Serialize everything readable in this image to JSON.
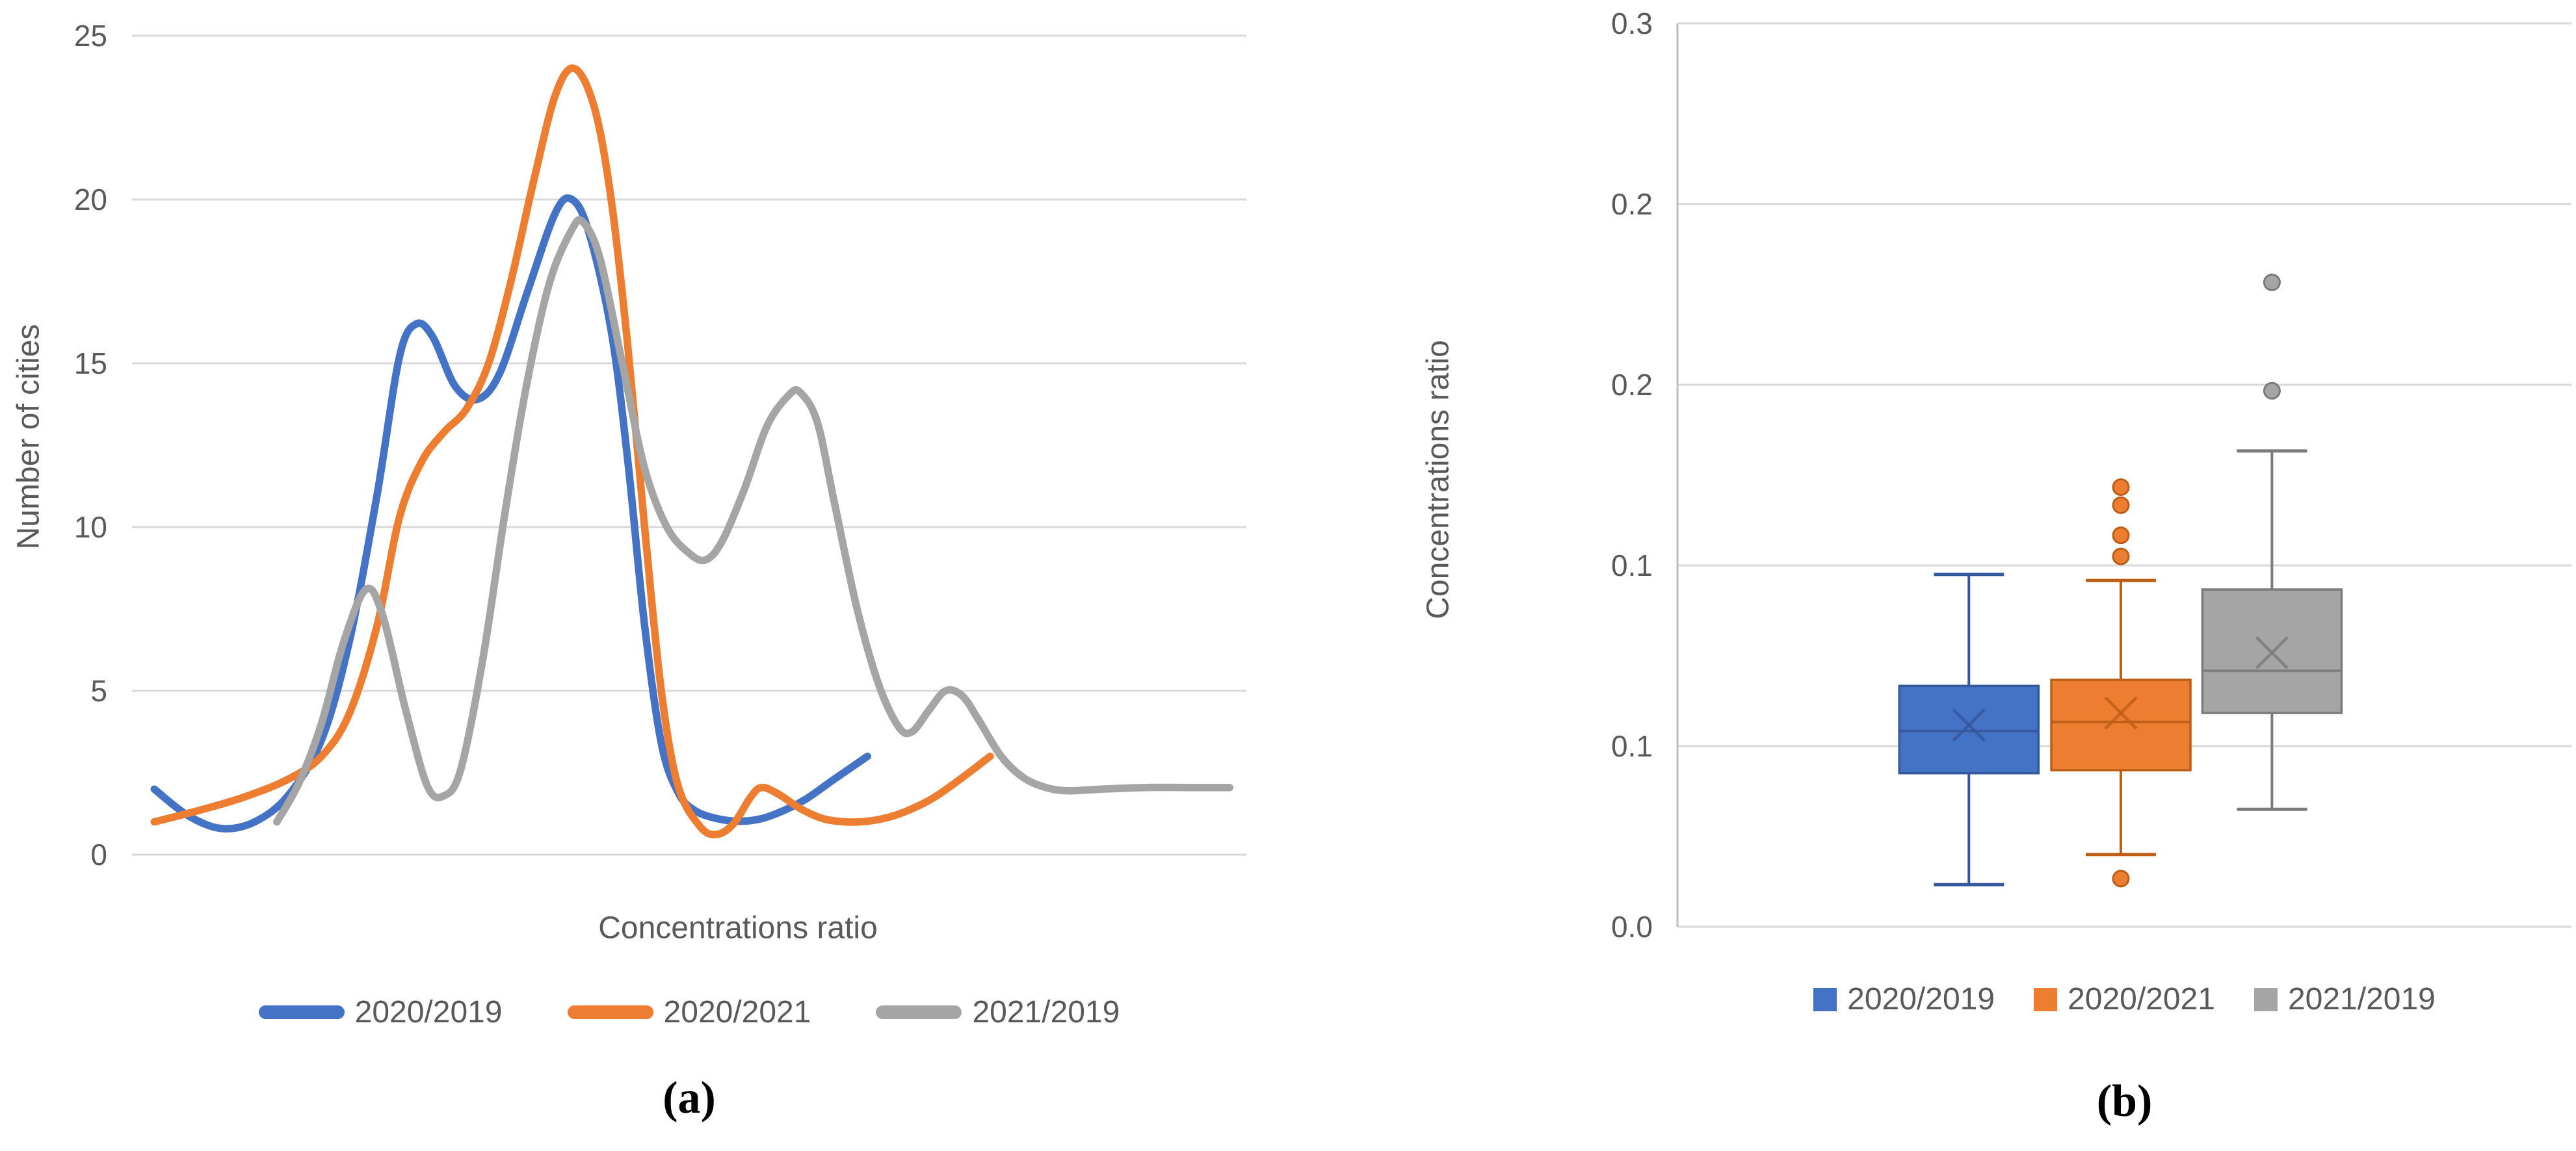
{
  "figure": {
    "caption_a": "(a)",
    "caption_b": "(b)"
  },
  "colors": {
    "gridline": "#D9D9D9",
    "axis_line": "#C0C0C0",
    "text": "#595959"
  },
  "chart_data": [
    {
      "type": "line",
      "panel": "a",
      "title": "",
      "xlabel": "Concentrations ratio",
      "ylabel": "Number of cities",
      "ylim": [
        0,
        25
      ],
      "yticks": [
        25,
        20,
        15,
        10,
        5,
        0
      ],
      "x_range": [
        0,
        100
      ],
      "x_tick_labels_visible": false,
      "grid": "horizontal",
      "legend_position": "bottom",
      "series": [
        {
          "name": "2020/2019",
          "color": "#4472C4",
          "points": [
            [
              2,
              2
            ],
            [
              5,
              1.2
            ],
            [
              8,
              0.8
            ],
            [
              11,
              1.0
            ],
            [
              14,
              1.8
            ],
            [
              17,
              3.5
            ],
            [
              19.5,
              6.5
            ],
            [
              22,
              11
            ],
            [
              24,
              15.2
            ],
            [
              25.5,
              16.2
            ],
            [
              27,
              15.8
            ],
            [
              29,
              14.3
            ],
            [
              31,
              13.9
            ],
            [
              33,
              14.7
            ],
            [
              35.5,
              17.2
            ],
            [
              38,
              19.6
            ],
            [
              39.5,
              20
            ],
            [
              41,
              19
            ],
            [
              43,
              16
            ],
            [
              44.5,
              12
            ],
            [
              46,
              7
            ],
            [
              47.5,
              3.4
            ],
            [
              49,
              1.9
            ],
            [
              50.5,
              1.35
            ],
            [
              52.5,
              1.1
            ],
            [
              54.5,
              1.02
            ],
            [
              56.5,
              1.1
            ],
            [
              58.5,
              1.35
            ],
            [
              60.5,
              1.7
            ],
            [
              63,
              2.3
            ],
            [
              66,
              3
            ]
          ]
        },
        {
          "name": "2020/2021",
          "color": "#ED7D31",
          "points": [
            [
              2,
              1
            ],
            [
              6,
              1.35
            ],
            [
              10,
              1.75
            ],
            [
              14,
              2.3
            ],
            [
              17,
              3
            ],
            [
              19.5,
              4.3
            ],
            [
              22,
              7
            ],
            [
              24,
              10.3
            ],
            [
              26,
              12
            ],
            [
              28,
              12.9
            ],
            [
              30,
              13.6
            ],
            [
              32,
              15
            ],
            [
              34,
              17.5
            ],
            [
              36,
              20.5
            ],
            [
              38,
              23.2
            ],
            [
              39.7,
              24
            ],
            [
              41.5,
              22.8
            ],
            [
              43,
              20
            ],
            [
              44.5,
              15.5
            ],
            [
              46,
              10
            ],
            [
              47.5,
              5
            ],
            [
              49,
              2.1
            ],
            [
              51,
              0.85
            ],
            [
              52.5,
              0.62
            ],
            [
              54,
              0.95
            ],
            [
              55.5,
              1.75
            ],
            [
              56.5,
              2.05
            ],
            [
              58,
              1.85
            ],
            [
              60,
              1.4
            ],
            [
              62,
              1.1
            ],
            [
              64,
              1.0
            ],
            [
              66,
              1.02
            ],
            [
              68,
              1.15
            ],
            [
              70,
              1.4
            ],
            [
              72,
              1.75
            ],
            [
              74.5,
              2.35
            ],
            [
              77,
              3
            ]
          ]
        },
        {
          "name": "2021/2019",
          "color": "#A5A5A5",
          "points": [
            [
              13,
              1
            ],
            [
              15,
              2.2
            ],
            [
              17,
              4
            ],
            [
              19,
              6.5
            ],
            [
              21,
              8.1
            ],
            [
              22.5,
              7.3
            ],
            [
              24.5,
              4.5
            ],
            [
              26.5,
              2.1
            ],
            [
              28,
              1.8
            ],
            [
              29.5,
              2.6
            ],
            [
              31.5,
              6
            ],
            [
              33.5,
              10.5
            ],
            [
              35.5,
              14.5
            ],
            [
              37.5,
              17.5
            ],
            [
              39.5,
              19.1
            ],
            [
              40.5,
              19.3
            ],
            [
              42,
              18.2
            ],
            [
              44,
              15
            ],
            [
              46,
              11.8
            ],
            [
              48,
              10
            ],
            [
              50,
              9.2
            ],
            [
              51.5,
              9.0
            ],
            [
              53,
              9.6
            ],
            [
              55,
              11.2
            ],
            [
              57,
              13.1
            ],
            [
              59,
              14.05
            ],
            [
              60,
              14.1
            ],
            [
              61.5,
              13.2
            ],
            [
              63,
              10.8
            ],
            [
              65,
              7.6
            ],
            [
              67,
              5.2
            ],
            [
              68.8,
              3.9
            ],
            [
              70,
              3.75
            ],
            [
              71.5,
              4.4
            ],
            [
              73,
              5.0
            ],
            [
              74.5,
              4.85
            ],
            [
              76,
              4.1
            ],
            [
              78,
              3.0
            ],
            [
              80,
              2.35
            ],
            [
              82,
              2.05
            ],
            [
              84,
              1.95
            ],
            [
              87,
              2.0
            ],
            [
              91,
              2.05
            ],
            [
              95,
              2.05
            ],
            [
              98.5,
              2.05
            ]
          ]
        }
      ]
    },
    {
      "type": "box",
      "panel": "b",
      "title": "",
      "xlabel": "",
      "ylabel": "Concentrations ratio",
      "ylim": [
        0,
        0.3
      ],
      "yticks": [
        {
          "value": 0.3,
          "label": "0.3"
        },
        {
          "value": 0.24,
          "label": "0.2"
        },
        {
          "value": 0.18,
          "label": "0.2"
        },
        {
          "value": 0.12,
          "label": "0.1"
        },
        {
          "value": 0.06,
          "label": "0.1"
        },
        {
          "value": 0.0,
          "label": "0.0"
        }
      ],
      "grid": "horizontal",
      "legend_position": "bottom",
      "groups": [
        {
          "name": "2020/2019",
          "color": "#4472C4",
          "line_color": "#35579E",
          "whisker_low": 0.014,
          "q1": 0.051,
          "median": 0.065,
          "mean": 0.067,
          "q3": 0.08,
          "whisker_high": 0.117,
          "outliers": []
        },
        {
          "name": "2020/2021",
          "color": "#ED7D31",
          "line_color": "#BE5D15",
          "whisker_low": 0.024,
          "q1": 0.052,
          "median": 0.068,
          "mean": 0.071,
          "q3": 0.082,
          "whisker_high": 0.115,
          "outliers": [
            0.146,
            0.14,
            0.13,
            0.123,
            0.016
          ]
        },
        {
          "name": "2021/2019",
          "color": "#A5A5A5",
          "line_color": "#7B7B7B",
          "whisker_low": 0.039,
          "q1": 0.071,
          "median": 0.085,
          "mean": 0.091,
          "q3": 0.112,
          "whisker_high": 0.158,
          "outliers": [
            0.214,
            0.178
          ]
        }
      ]
    }
  ]
}
